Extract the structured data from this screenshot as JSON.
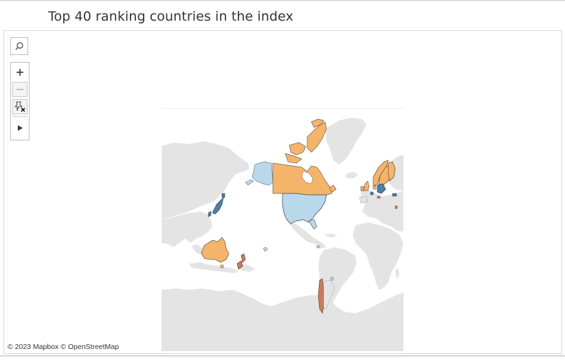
{
  "title": "Top 40 ranking countries in the index",
  "attribution": "© 2023 Mapbox © OpenStreetMap",
  "toolbar": {
    "search": "search-icon",
    "zoom_in": "plus-icon",
    "zoom_out": "minus-icon",
    "reset": "unpin-icon",
    "expand": "play-icon"
  },
  "colors": {
    "land": "#e4e4e4",
    "ocean": "#ffffff",
    "highlight_orange": "#f4b56b",
    "highlight_light_blue": "#b9d8ea",
    "highlight_dark_blue": "#4f7fa8",
    "highlight_brown": "#c97c5d"
  },
  "map": {
    "highlighted_regions": [
      {
        "name": "Canada",
        "color": "orange"
      },
      {
        "name": "United States",
        "color": "light-blue"
      },
      {
        "name": "Alaska",
        "color": "light-blue"
      },
      {
        "name": "Australia",
        "color": "orange"
      },
      {
        "name": "New Zealand",
        "color": "brown"
      },
      {
        "name": "Japan",
        "color": "dark-blue"
      },
      {
        "name": "Ireland",
        "color": "orange"
      },
      {
        "name": "United Kingdom",
        "color": "orange"
      },
      {
        "name": "Norway",
        "color": "orange"
      },
      {
        "name": "Sweden",
        "color": "orange"
      },
      {
        "name": "Finland",
        "color": "orange"
      },
      {
        "name": "Germany",
        "color": "dark-blue"
      },
      {
        "name": "Chile",
        "color": "brown"
      },
      {
        "name": "Uruguay",
        "color": "light-blue"
      }
    ]
  }
}
